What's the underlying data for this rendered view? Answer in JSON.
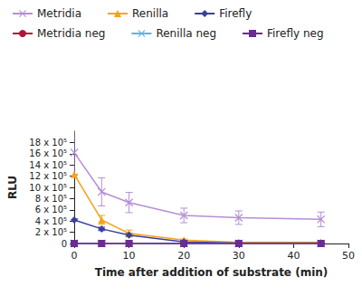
{
  "chart_data": {
    "type": "line",
    "x_label": "Time after addition of substrate (min)",
    "y_label": "RLU",
    "x": [
      0,
      5,
      10,
      20,
      30,
      45
    ],
    "xlim": [
      0,
      50
    ],
    "xticks": [
      0,
      10,
      20,
      30,
      40,
      50
    ],
    "ylim": [
      0,
      2000000
    ],
    "yticks": [
      0,
      {
        "value": 200000,
        "label": "2 x 10⁵"
      },
      {
        "value": 400000,
        "label": "4 x 10⁵"
      },
      {
        "value": 600000,
        "label": "6 x 10⁵"
      },
      {
        "value": 800000,
        "label": "8 x 10⁵"
      },
      {
        "value": 1000000,
        "label": "10 x 10⁵"
      },
      {
        "value": 1200000,
        "label": "12 x 10⁵"
      },
      {
        "value": 1400000,
        "label": "14 x 10⁵"
      },
      {
        "value": 1600000,
        "label": "16 x 10⁵"
      },
      {
        "value": 1800000,
        "label": "18 x 10⁵"
      }
    ],
    "grid": false,
    "legend": "top",
    "series": [
      {
        "name": "Metridia",
        "color": "#b58fd6",
        "marker": "x",
        "values": [
          1620000,
          920000,
          730000,
          500000,
          460000,
          430000
        ],
        "errors": [
          400000,
          250000,
          180000,
          130000,
          120000,
          130000
        ]
      },
      {
        "name": "Renilla",
        "color": "#f5a31a",
        "marker": "triangle",
        "values": [
          1230000,
          420000,
          180000,
          60000,
          20000,
          20000
        ],
        "errors": [
          0,
          80000,
          60000,
          20000,
          10000,
          10000
        ]
      },
      {
        "name": "Firefly",
        "color": "#3a3f9e",
        "marker": "diamond",
        "values": [
          420000,
          260000,
          150000,
          30000,
          10000,
          10000
        ],
        "errors": [
          20000,
          30000,
          30000,
          10000,
          0,
          0
        ]
      },
      {
        "name": "Metridia neg",
        "color": "#b0143a",
        "marker": "circle",
        "values": [
          0,
          0,
          0,
          0,
          0,
          0
        ]
      },
      {
        "name": "Renilla neg",
        "color": "#5fb3e0",
        "marker": "x",
        "values": [
          0,
          0,
          0,
          0,
          0,
          0
        ]
      },
      {
        "name": "Firefly neg",
        "color": "#6a2c91",
        "marker": "square",
        "values": [
          0,
          0,
          0,
          0,
          0,
          0
        ]
      }
    ]
  }
}
